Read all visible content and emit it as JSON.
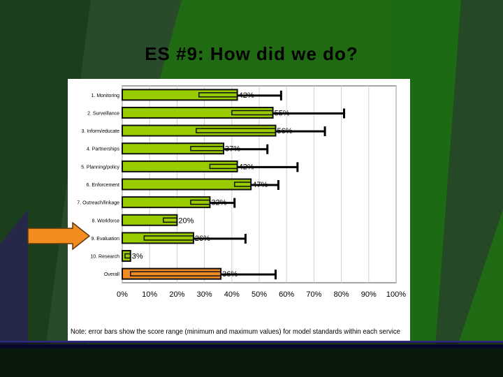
{
  "slide": {
    "title": "ES #9: How did we do?",
    "background_color": "#1f6a12",
    "accent_color": "#2a7a1a"
  },
  "chart_data": {
    "type": "bar",
    "orientation": "horizontal",
    "categories": [
      "1. Monitoring",
      "2. Surveillance",
      "3. Inform/educate",
      "4. Partnerships",
      "5. Planning/policy",
      "6. Enforcement",
      "7. Outreach/linkage",
      "8. Workforce",
      "9. Evaluation",
      "10. Research",
      "Overall"
    ],
    "series": [
      {
        "values": [
          42,
          55,
          56,
          37,
          42,
          47,
          32,
          20,
          26,
          3,
          36
        ],
        "labels": [
          "42%",
          "55%",
          "56%",
          "37%",
          "42%",
          "47%",
          "32%",
          "20%",
          "26%",
          "3%",
          "36%"
        ]
      }
    ],
    "error_bars": {
      "min": [
        28,
        40,
        27,
        25,
        32,
        41,
        25,
        15,
        8,
        1,
        3
      ],
      "max": [
        58,
        81,
        74,
        53,
        64,
        57,
        41,
        20,
        45,
        3,
        56
      ]
    },
    "bar_colors": [
      "#99cc00",
      "#99cc00",
      "#99cc00",
      "#99cc00",
      "#99cc00",
      "#99cc00",
      "#99cc00",
      "#99cc00",
      "#99cc00",
      "#99cc00",
      "#f08a24"
    ],
    "xlim": [
      0,
      100
    ],
    "x_ticks": [
      "0%",
      "10%",
      "20%",
      "30%",
      "40%",
      "50%",
      "60%",
      "70%",
      "80%",
      "90%",
      "100%"
    ],
    "grid": true,
    "highlighted_category": "9. Evaluation",
    "note": "Note: error bars show the score range (minimum and maximum values) for model standards within each service"
  }
}
